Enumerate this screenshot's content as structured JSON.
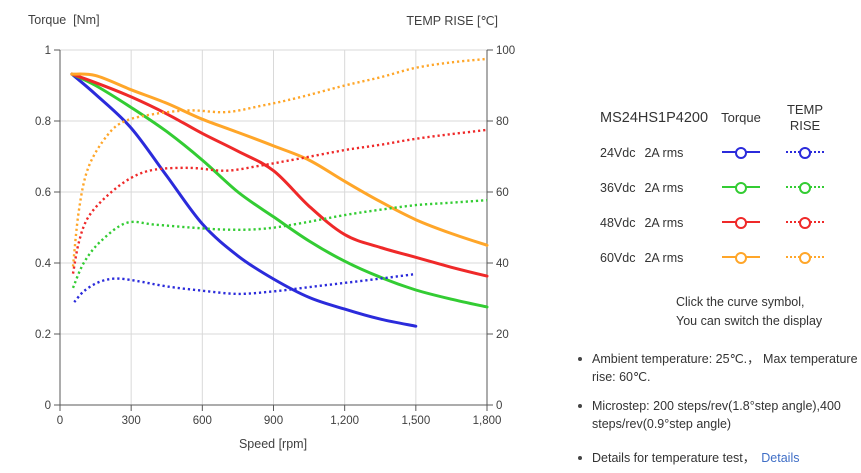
{
  "chart_data": {
    "type": "line",
    "xlabel": "Speed [rpm]",
    "x_range": [
      0,
      1800
    ],
    "x_ticks": [
      0,
      300,
      600,
      900,
      1200,
      1500,
      1800
    ],
    "left_axis": {
      "title": "Torque  [Nm]",
      "range": [
        0,
        1
      ],
      "ticks": [
        0,
        0.2,
        0.4,
        0.6,
        0.8,
        1
      ]
    },
    "right_axis": {
      "title": "TEMP RISE [℃]",
      "range": [
        0,
        100
      ],
      "ticks": [
        0,
        20,
        40,
        60,
        80,
        100
      ]
    },
    "grid": true,
    "grid_color": "#d9d9d9",
    "axis_color": "#595959",
    "text_color": "#404040",
    "legend_position": "right",
    "series": [
      {
        "key": "torque-24vdc",
        "name": "24Vdc 2A rms Torque",
        "color": "#2b2bdb",
        "style": "solid",
        "axis": "left",
        "points": [
          [
            50,
            0.932
          ],
          [
            150,
            0.875
          ],
          [
            300,
            0.78
          ],
          [
            450,
            0.645
          ],
          [
            600,
            0.51
          ],
          [
            750,
            0.42
          ],
          [
            900,
            0.355
          ],
          [
            1050,
            0.303
          ],
          [
            1200,
            0.27
          ],
          [
            1350,
            0.242
          ],
          [
            1500,
            0.222
          ]
        ]
      },
      {
        "key": "torque-36vdc",
        "name": "36Vdc 2A rms Torque",
        "color": "#33cc33",
        "style": "solid",
        "axis": "left",
        "points": [
          [
            50,
            0.932
          ],
          [
            150,
            0.9
          ],
          [
            300,
            0.838
          ],
          [
            450,
            0.77
          ],
          [
            600,
            0.69
          ],
          [
            750,
            0.6
          ],
          [
            900,
            0.53
          ],
          [
            1050,
            0.462
          ],
          [
            1200,
            0.405
          ],
          [
            1350,
            0.36
          ],
          [
            1500,
            0.324
          ],
          [
            1650,
            0.298
          ],
          [
            1800,
            0.276
          ]
        ]
      },
      {
        "key": "torque-48vdc",
        "name": "48Vdc 2A rms Torque",
        "color": "#ef2929",
        "style": "solid",
        "axis": "left",
        "points": [
          [
            50,
            0.932
          ],
          [
            150,
            0.908
          ],
          [
            300,
            0.868
          ],
          [
            450,
            0.82
          ],
          [
            600,
            0.765
          ],
          [
            750,
            0.715
          ],
          [
            900,
            0.66
          ],
          [
            1050,
            0.56
          ],
          [
            1200,
            0.48
          ],
          [
            1350,
            0.444
          ],
          [
            1500,
            0.416
          ],
          [
            1650,
            0.388
          ],
          [
            1800,
            0.363
          ]
        ]
      },
      {
        "key": "torque-60vdc",
        "name": "60Vdc 2A rms Torque",
        "color": "#ffa629",
        "style": "solid",
        "axis": "left",
        "points": [
          [
            50,
            0.932
          ],
          [
            150,
            0.928
          ],
          [
            300,
            0.888
          ],
          [
            450,
            0.85
          ],
          [
            600,
            0.805
          ],
          [
            750,
            0.768
          ],
          [
            900,
            0.73
          ],
          [
            1050,
            0.69
          ],
          [
            1200,
            0.63
          ],
          [
            1350,
            0.573
          ],
          [
            1500,
            0.522
          ],
          [
            1650,
            0.483
          ],
          [
            1800,
            0.45
          ]
        ]
      },
      {
        "key": "temp-24vdc",
        "name": "24Vdc 2A rms TEMP RISE",
        "color": "#2b2bdb",
        "style": "dotted",
        "axis": "right",
        "points": [
          [
            60,
            29
          ],
          [
            100,
            32
          ],
          [
            160,
            34.5
          ],
          [
            230,
            35.6
          ],
          [
            320,
            35
          ],
          [
            450,
            33.4
          ],
          [
            600,
            32.2
          ],
          [
            750,
            31.3
          ],
          [
            900,
            32
          ],
          [
            1050,
            33.2
          ],
          [
            1200,
            34.4
          ],
          [
            1350,
            35.6
          ],
          [
            1500,
            36.9
          ]
        ]
      },
      {
        "key": "temp-36vdc",
        "name": "36Vdc 2A rms TEMP RISE",
        "color": "#33cc33",
        "style": "dotted",
        "axis": "right",
        "points": [
          [
            55,
            33
          ],
          [
            100,
            40
          ],
          [
            170,
            46
          ],
          [
            280,
            51.3
          ],
          [
            400,
            50.8
          ],
          [
            550,
            50
          ],
          [
            700,
            49.4
          ],
          [
            850,
            49.6
          ],
          [
            1000,
            51
          ],
          [
            1200,
            53.5
          ],
          [
            1350,
            55
          ],
          [
            1500,
            56.3
          ],
          [
            1650,
            57
          ],
          [
            1800,
            57.7
          ]
        ]
      },
      {
        "key": "temp-48vdc",
        "name": "48Vdc 2A rms TEMP RISE",
        "color": "#ef2929",
        "style": "dotted",
        "axis": "right",
        "points": [
          [
            55,
            37
          ],
          [
            80,
            46
          ],
          [
            120,
            53
          ],
          [
            200,
            59
          ],
          [
            300,
            64
          ],
          [
            400,
            66.3
          ],
          [
            550,
            66.8
          ],
          [
            700,
            66
          ],
          [
            850,
            67.5
          ],
          [
            1000,
            69.3
          ],
          [
            1200,
            71.8
          ],
          [
            1350,
            73.3
          ],
          [
            1500,
            75
          ],
          [
            1650,
            76.3
          ],
          [
            1800,
            77.5
          ]
        ]
      },
      {
        "key": "temp-60vdc",
        "name": "60Vdc 2A rms TEMP RISE",
        "color": "#ffa629",
        "style": "dotted",
        "axis": "right",
        "points": [
          [
            55,
            39
          ],
          [
            80,
            55
          ],
          [
            120,
            67
          ],
          [
            200,
            76
          ],
          [
            275,
            80
          ],
          [
            400,
            82
          ],
          [
            550,
            83
          ],
          [
            700,
            82.5
          ],
          [
            850,
            84.3
          ],
          [
            1000,
            86.5
          ],
          [
            1200,
            90
          ],
          [
            1350,
            92.3
          ],
          [
            1500,
            95
          ],
          [
            1650,
            96.5
          ],
          [
            1800,
            97.5
          ]
        ]
      }
    ]
  },
  "legend": {
    "model": "MS24HS1P4200",
    "col_torque": "Torque",
    "col_temp": "TEMP RISE",
    "rows": [
      {
        "voltage": "24Vdc",
        "current": "2A rms",
        "color": "#2b2bdb"
      },
      {
        "voltage": "36Vdc",
        "current": "2A rms",
        "color": "#33cc33"
      },
      {
        "voltage": "48Vdc",
        "current": "2A rms",
        "color": "#ef2929"
      },
      {
        "voltage": "60Vdc",
        "current": "2A rms",
        "color": "#ffa629"
      }
    ],
    "hint_line1": "Click the curve symbol,",
    "hint_line2": "You can switch the display"
  },
  "notes": [
    {
      "text": "Ambient temperature: 25℃.， Max temperature rise: 60℃."
    },
    {
      "text": "Microstep: 200 steps/rev(1.8°step angle),400 steps/rev(0.9°step angle)"
    },
    {
      "text": "Details for temperature test，",
      "link_label": "Details"
    }
  ],
  "colors": {
    "link": "#3f6ec6",
    "note_text": "#333333"
  }
}
